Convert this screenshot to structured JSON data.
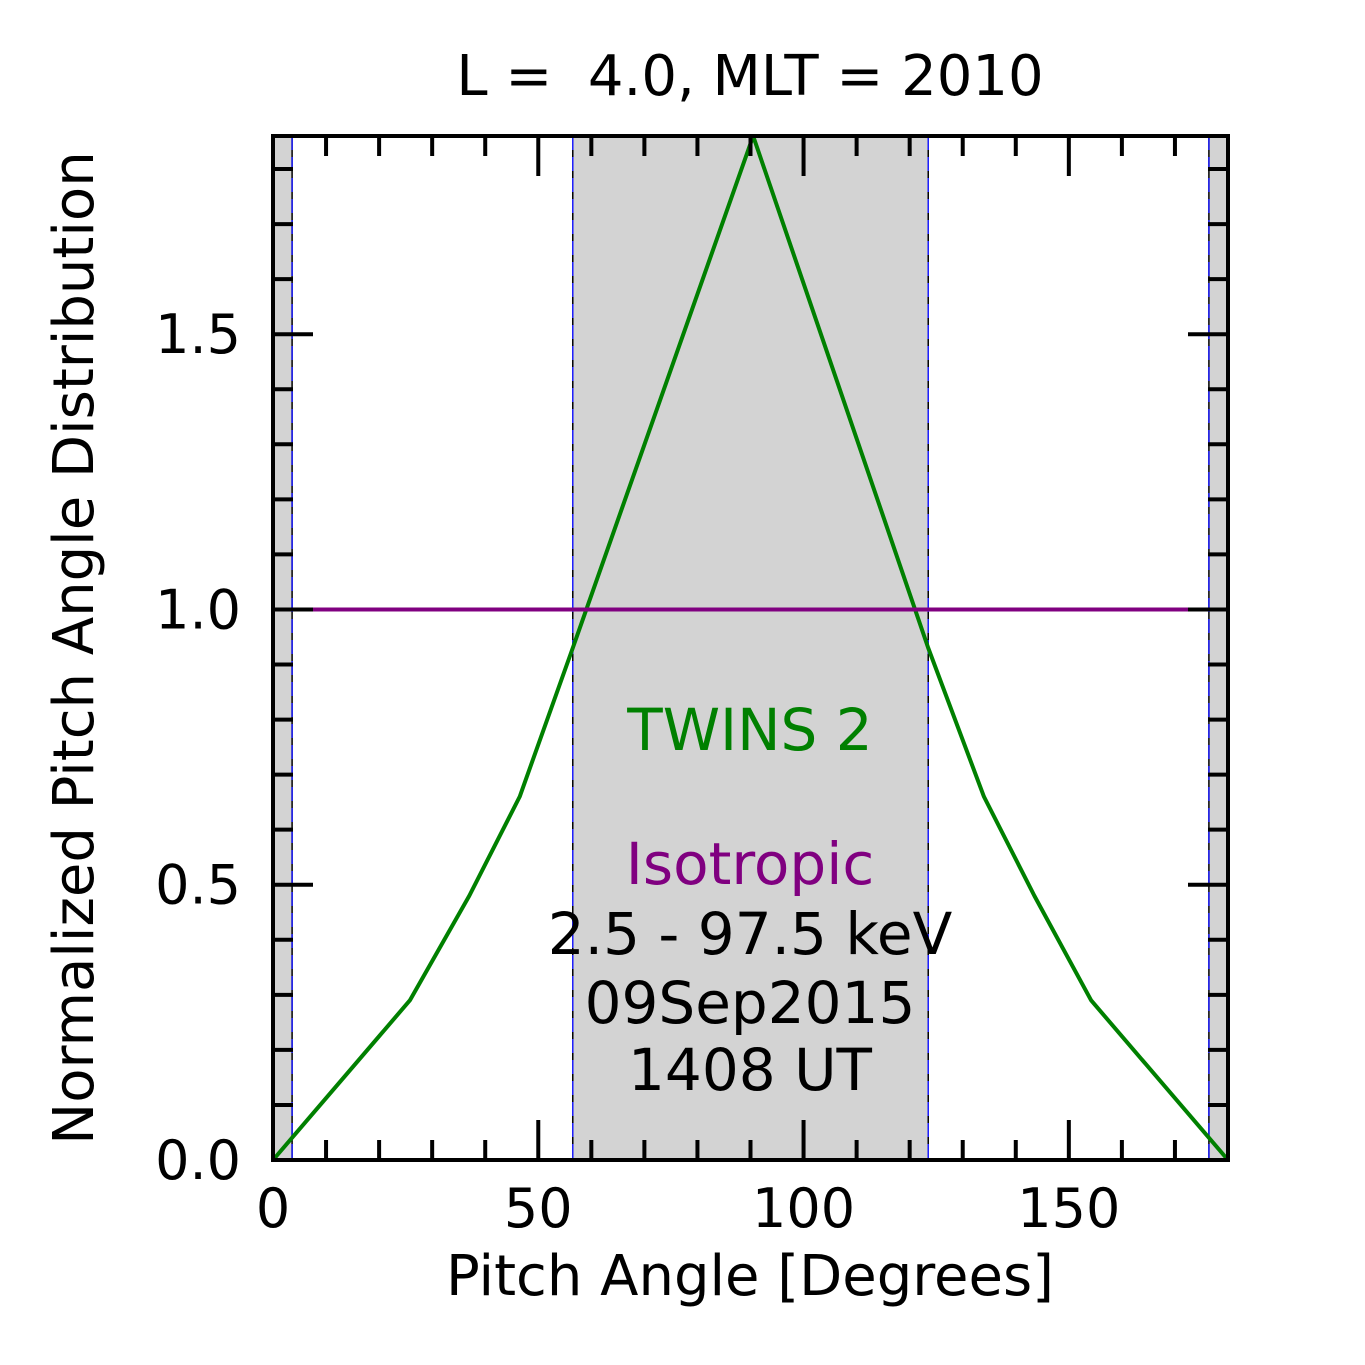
{
  "chart_data": {
    "type": "line",
    "title": "L =  4.0, MLT = 2010",
    "xlabel": "Pitch Angle [Degrees]",
    "ylabel": "Normalized Pitch Angle Distribution",
    "xlim": [
      0,
      180
    ],
    "ylim": [
      0,
      1.86
    ],
    "xticks": [
      0,
      50,
      100,
      150
    ],
    "xtick_labels": [
      "0",
      "50",
      "100",
      "150"
    ],
    "yticks": [
      0,
      0.5,
      1.0,
      1.5
    ],
    "ytick_labels": [
      "0.0",
      "0.5",
      "1.0",
      "1.5"
    ],
    "x_minor_step": 10,
    "y_minor_step": 0.1,
    "grid": false,
    "shaded_regions": [
      {
        "x": [
          0,
          3.6
        ],
        "color": "#d3d3d3"
      },
      {
        "x": [
          56.5,
          123.5
        ],
        "color": "#d3d3d3"
      },
      {
        "x": [
          176.4,
          180
        ],
        "color": "#d3d3d3"
      }
    ],
    "boundary_lines": [
      3.6,
      56.5,
      123.5,
      176.4
    ],
    "series": [
      {
        "name": "TWINS 2",
        "color": "#008000",
        "x": [
          0,
          25.8,
          37,
          46.5,
          56.5,
          90.5,
          123.5,
          134,
          143.5,
          154.2,
          180
        ],
        "y": [
          0,
          0.29,
          0.48,
          0.66,
          0.93,
          1.86,
          0.93,
          0.66,
          0.48,
          0.29,
          0
        ]
      },
      {
        "name": "Isotropic",
        "color": "#800080",
        "x": [
          0,
          180
        ],
        "y": [
          1.0,
          1.0
        ]
      }
    ],
    "annotations": [
      {
        "text": "TWINS 2",
        "color": "#008000"
      },
      {
        "text": "Isotropic",
        "color": "#800080"
      },
      {
        "text": "2.5 - 97.5 keV",
        "color": "#000000"
      },
      {
        "text": "09Sep2015",
        "color": "#000000"
      },
      {
        "text": "1408 UT",
        "color": "#000000"
      }
    ]
  }
}
